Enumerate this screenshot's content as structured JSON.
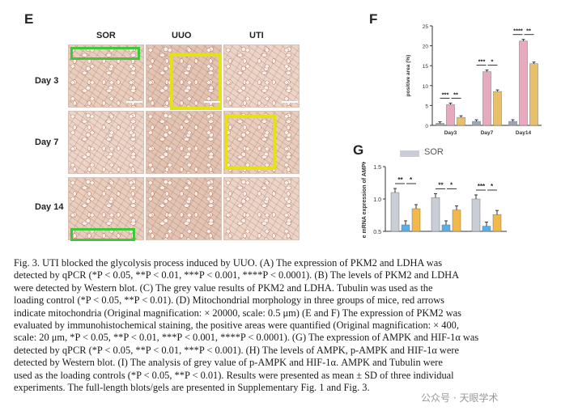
{
  "panel_E": {
    "letter": "E",
    "columns": [
      "SOR",
      "UUO",
      "UTI"
    ],
    "rows": [
      "Day 3",
      "Day 7",
      "Day 14"
    ]
  },
  "panel_F": {
    "letter": "F",
    "chart_data": {
      "type": "bar",
      "categories": [
        "Day3",
        "Day7",
        "Day14"
      ],
      "series": [
        {
          "values": [
            0.5,
            1.0,
            1.0
          ],
          "color": "#9ba7b8"
        },
        {
          "values": [
            5.2,
            13.5,
            21.2
          ],
          "color": "#e6a9bd"
        },
        {
          "values": [
            2.0,
            8.5,
            15.5
          ],
          "color": "#e8c06a"
        }
      ],
      "ylabel": "positive area (%)",
      "ylim": [
        0,
        25
      ],
      "yticks": [
        "0",
        "5",
        "10",
        "15",
        "20",
        "25"
      ],
      "sig": [
        [
          "***",
          "**"
        ],
        [
          "***",
          "*"
        ],
        [
          "****",
          "**"
        ]
      ]
    }
  },
  "panel_G": {
    "letter": "G",
    "legend_label": "SOR",
    "chart_data": {
      "type": "bar",
      "series": [
        {
          "name": "SOR",
          "values": [
            1.1,
            1.02,
            1.0
          ],
          "color": "#c9ced6"
        },
        {
          "values": [
            0.6,
            0.6,
            0.58
          ],
          "color": "#5aaee6"
        },
        {
          "values": [
            0.85,
            0.83,
            0.76
          ],
          "color": "#f2b84a"
        }
      ],
      "ylabel": "e mRNA expression of AMPK",
      "ylim": [
        0.5,
        1.5
      ],
      "yticks": [
        "0.5",
        "1.0",
        "1.5"
      ],
      "sig": [
        [
          "**",
          "*"
        ],
        [
          "**",
          "*"
        ],
        [
          "***",
          "*"
        ]
      ]
    }
  },
  "caption": {
    "label": "Fig. 3.",
    "lines": [
      "Fig. 3.  UTI blocked the glycolysis process induced by UUO. (A) The expression of PKM2 and LDHA was",
      "detected by qPCR (*P < 0.05, **P < 0.01, ***P < 0.001, ****P < 0.0001). (B) The levels of PKM2 and LDHA",
      "were detected by Western blot. (C) The grey value results of PKM2 and LDHA. Tubulin was used as the",
      "loading control (*P < 0.05, **P < 0.01). (D) Mitochondrial morphology in three groups of mice, red arrows",
      "indicate mitochondria (Original magnification: × 20000, scale: 0.5 μm) (E and F) The expression of PKM2 was",
      "evaluated by immunohistochemical staining, the positive areas were quantified (Original magnification: × 400,",
      "scale: 20 μm, *P < 0.05, **P < 0.01, ***P < 0.001, ****P < 0.0001). (G) The expression of AMPK and HIF-1α was",
      "detected by qPCR (*P < 0.05, **P < 0.01, ***P < 0.001). (H) The levels of AMPK, p-AMPK and HIF-1α were",
      "detected by Western blot. (I) The analysis of grey value of p-AMPK and HIF-1α. AMPK and Tubulin were",
      "used as the loading controls (*P < 0.05, **P < 0.01). Results were presented as mean ± SD of three individual",
      "experiments. The full-length blots/gels are presented in Supplementary Fig. 1 and Fig. 3."
    ]
  },
  "watermark": "公众号 · 天眼学术"
}
